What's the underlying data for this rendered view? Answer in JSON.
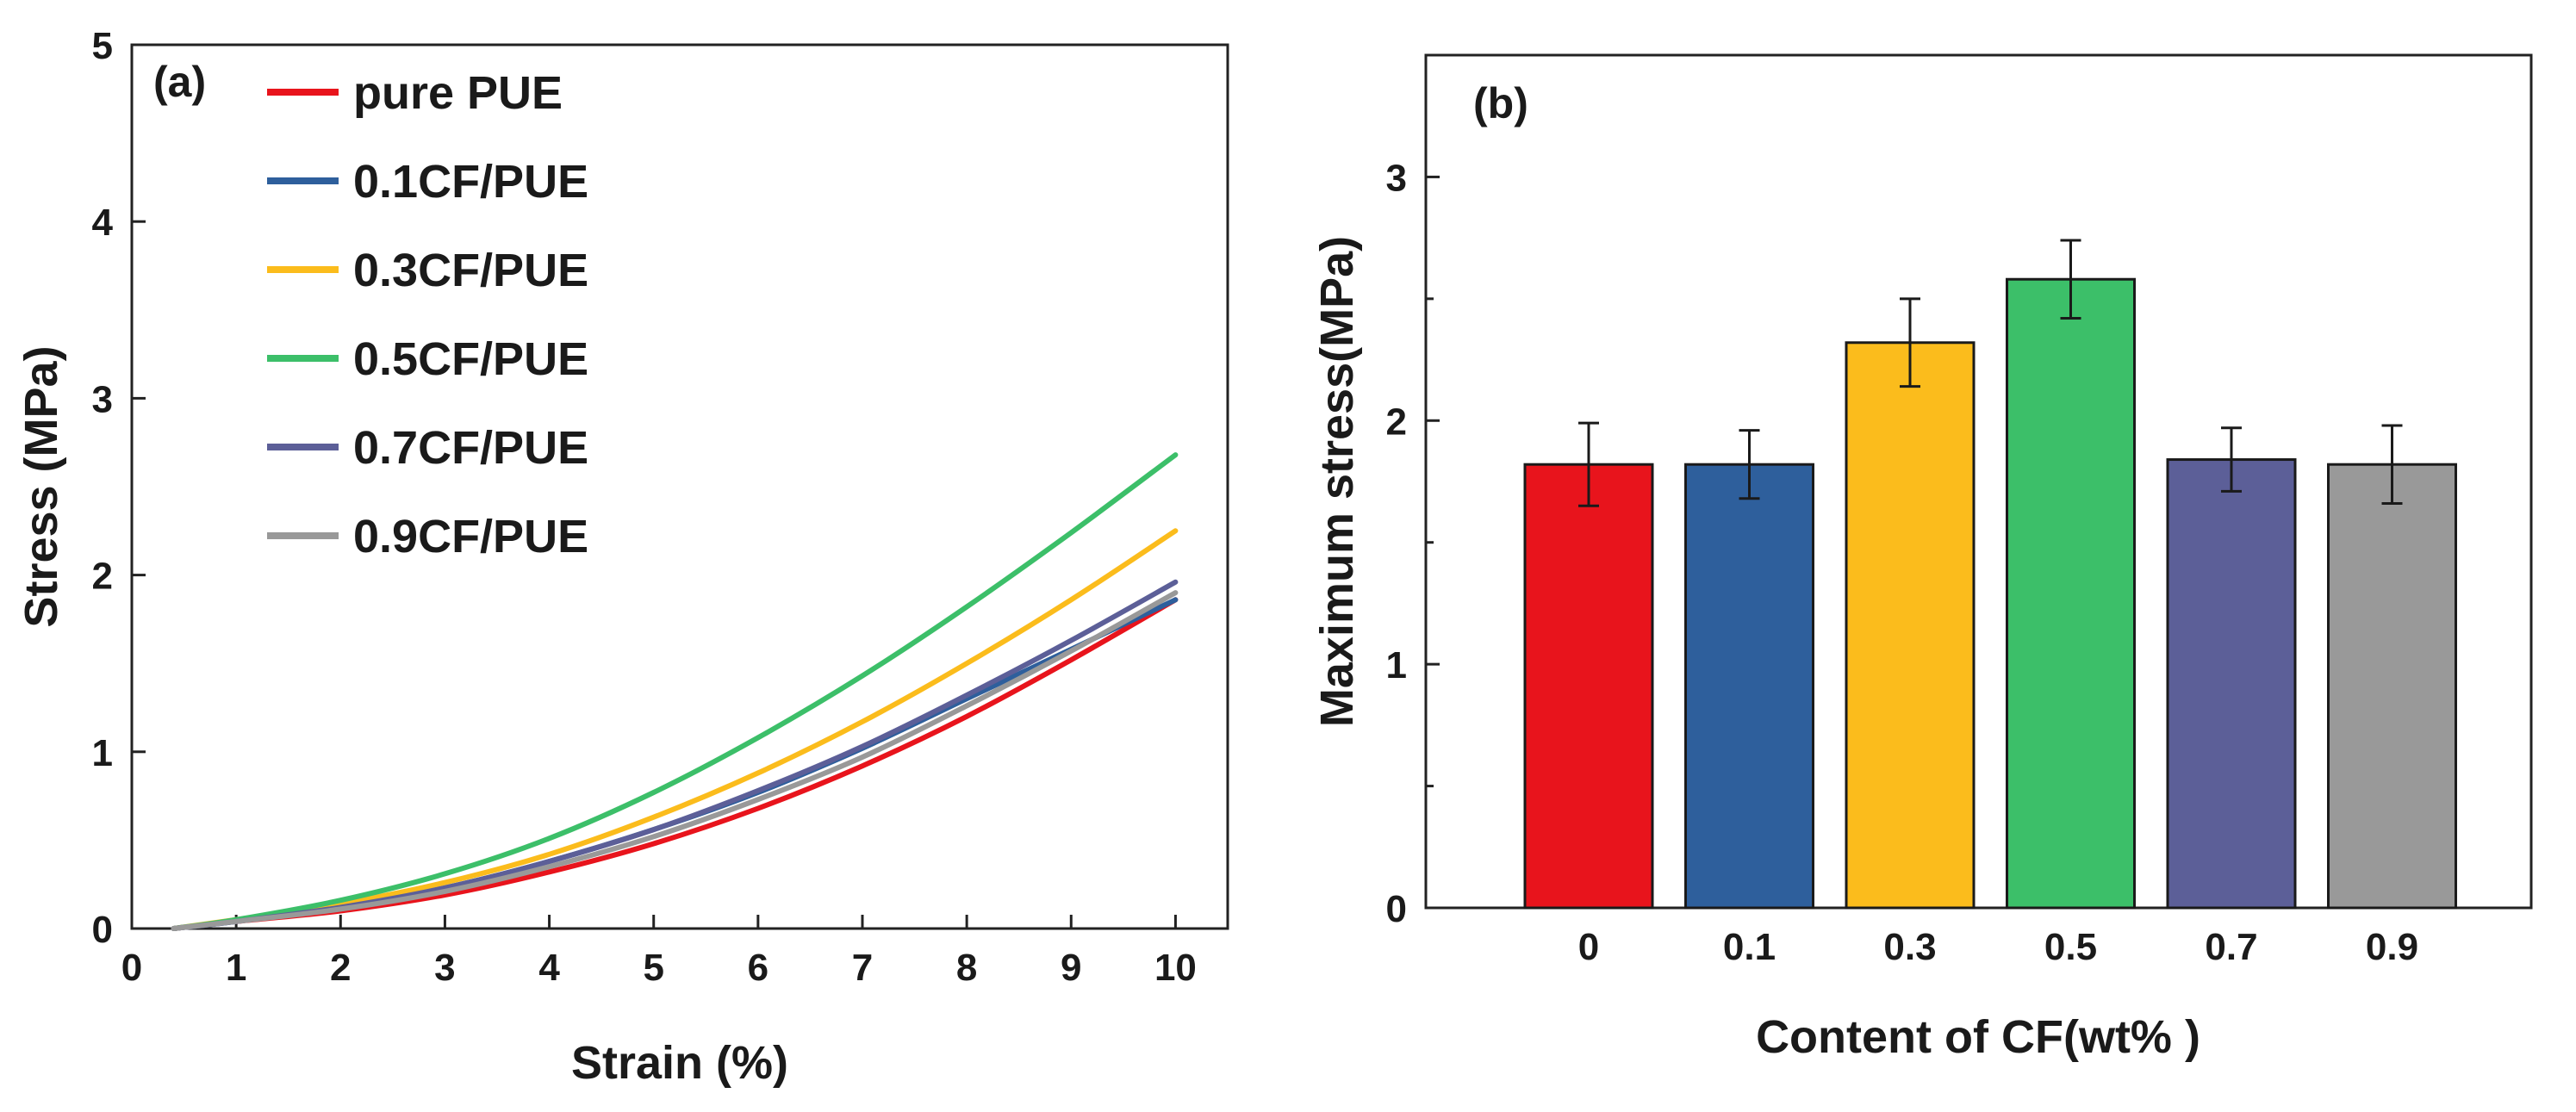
{
  "chart_data": [
    {
      "type": "line",
      "panel_label": "(a)",
      "title": "",
      "xlabel": "Strain (%)",
      "ylabel": "Stress (MPa)",
      "xlim": [
        0,
        10.5
      ],
      "ylim": [
        0,
        5
      ],
      "xticks": [
        0,
        1,
        2,
        3,
        4,
        5,
        6,
        7,
        8,
        9,
        10
      ],
      "yticks": [
        0,
        1,
        2,
        3,
        4,
        5
      ],
      "grid": false,
      "legend_position": "top-left",
      "series": [
        {
          "name": "pure PUE",
          "color": "#e8141c",
          "x": [
            0.4,
            1,
            2,
            3,
            4,
            5,
            6,
            7,
            8,
            9,
            10
          ],
          "y": [
            0,
            0.04,
            0.1,
            0.19,
            0.32,
            0.48,
            0.68,
            0.92,
            1.2,
            1.52,
            1.86
          ]
        },
        {
          "name": "0.1CF/PUE",
          "color": "#2e5f9c",
          "x": [
            0.4,
            1,
            2,
            3,
            4,
            5,
            6,
            7,
            8,
            9,
            10
          ],
          "y": [
            0,
            0.04,
            0.12,
            0.23,
            0.38,
            0.56,
            0.77,
            1.02,
            1.3,
            1.58,
            1.86
          ]
        },
        {
          "name": "0.3CF/PUE",
          "color": "#fbbc1c",
          "x": [
            0.4,
            1,
            2,
            3,
            4,
            5,
            6,
            7,
            8,
            9,
            10
          ],
          "y": [
            0,
            0.05,
            0.14,
            0.26,
            0.42,
            0.63,
            0.88,
            1.17,
            1.5,
            1.86,
            2.25
          ]
        },
        {
          "name": "0.5CF/PUE",
          "color": "#3cbf69",
          "x": [
            0.4,
            1,
            2,
            3,
            4,
            5,
            6,
            7,
            8,
            9,
            10
          ],
          "y": [
            0,
            0.05,
            0.16,
            0.31,
            0.51,
            0.77,
            1.08,
            1.43,
            1.82,
            2.24,
            2.68
          ]
        },
        {
          "name": "0.7CF/PUE",
          "color": "#5c5f98",
          "x": [
            0.4,
            1,
            2,
            3,
            4,
            5,
            6,
            7,
            8,
            9,
            10
          ],
          "y": [
            0,
            0.04,
            0.12,
            0.23,
            0.38,
            0.56,
            0.78,
            1.03,
            1.32,
            1.63,
            1.96
          ]
        },
        {
          "name": "0.9CF/PUE",
          "color": "#999999",
          "x": [
            0.4,
            1,
            2,
            3,
            4,
            5,
            6,
            7,
            8,
            9,
            10
          ],
          "y": [
            0,
            0.04,
            0.11,
            0.21,
            0.35,
            0.52,
            0.73,
            0.97,
            1.26,
            1.57,
            1.9
          ]
        }
      ]
    },
    {
      "type": "bar",
      "panel_label": "(b)",
      "title": "",
      "xlabel": "Content of CF(wt% )",
      "ylabel": "Maximum stress(MPa)",
      "ylim": [
        0,
        3.5
      ],
      "yticks": [
        0,
        1,
        2,
        3
      ],
      "grid": false,
      "categories": [
        "0",
        "0.1",
        "0.3",
        "0.5",
        "0.7",
        "0.9"
      ],
      "values": [
        1.82,
        1.82,
        2.32,
        2.58,
        1.84,
        1.82
      ],
      "errors": [
        0.17,
        0.14,
        0.18,
        0.16,
        0.13,
        0.16
      ],
      "colors": [
        "#e8141c",
        "#2e5f9c",
        "#fbbc1c",
        "#3cbf69",
        "#5c5f98",
        "#999999"
      ]
    }
  ]
}
